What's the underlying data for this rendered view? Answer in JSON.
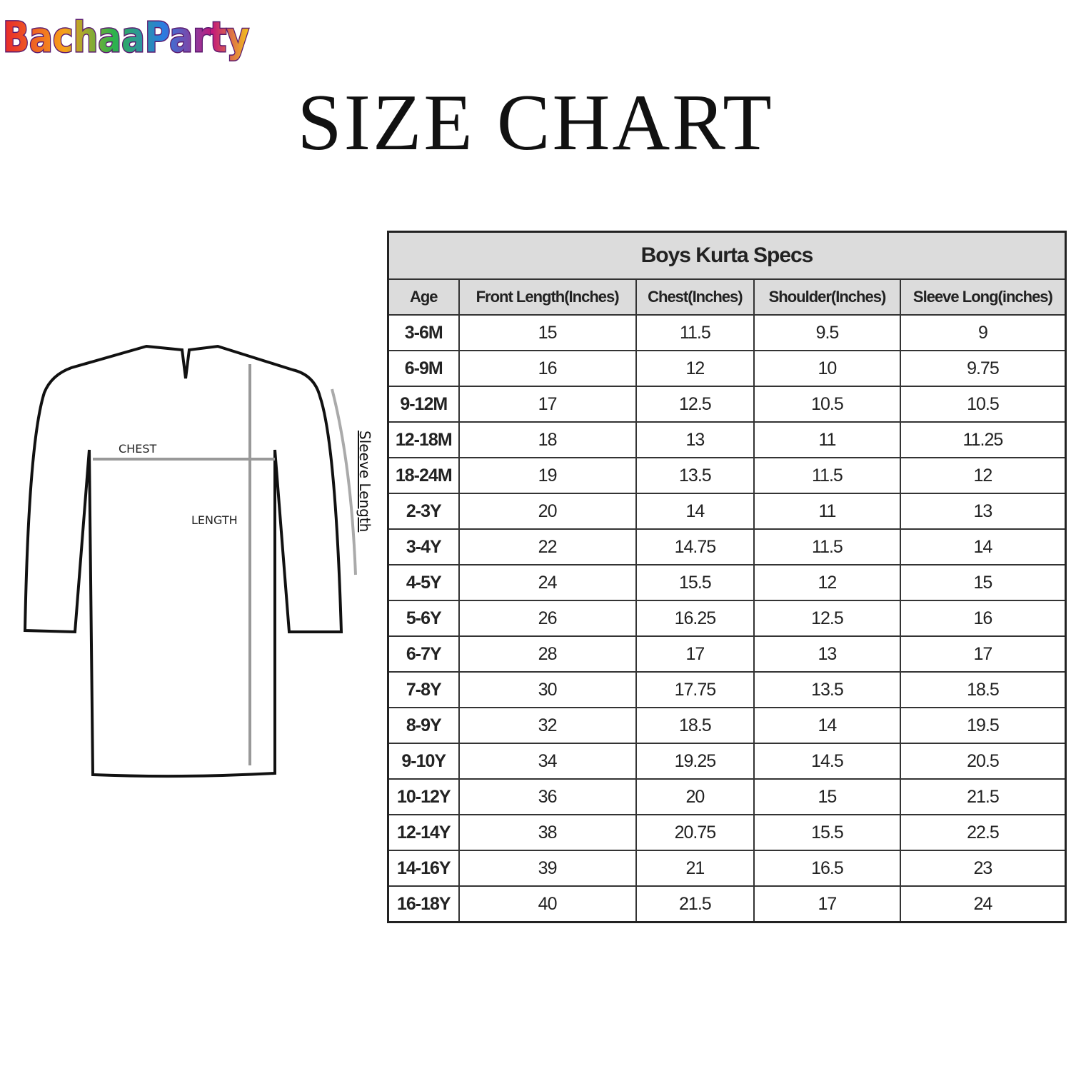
{
  "logo": "BachaaParty",
  "title": "SIZE CHART",
  "diagram": {
    "chest": "CHEST",
    "length": "LENGTH",
    "sleeve": "Sleeve Length"
  },
  "table": {
    "title": "Boys Kurta Specs",
    "header": [
      "Age",
      "Front Length(Inches)",
      "Chest(Inches)",
      "Shoulder(Inches)",
      "Sleeve Long(inches)"
    ],
    "rows": [
      [
        "3-6M",
        "15",
        "11.5",
        "9.5",
        "9"
      ],
      [
        "6-9M",
        "16",
        "12",
        "10",
        "9.75"
      ],
      [
        "9-12M",
        "17",
        "12.5",
        "10.5",
        "10.5"
      ],
      [
        "12-18M",
        "18",
        "13",
        "11",
        "11.25"
      ],
      [
        "18-24M",
        "19",
        "13.5",
        "11.5",
        "12"
      ],
      [
        "2-3Y",
        "20",
        "14",
        "11",
        "13"
      ],
      [
        "3-4Y",
        "22",
        "14.75",
        "11.5",
        "14"
      ],
      [
        "4-5Y",
        "24",
        "15.5",
        "12",
        "15"
      ],
      [
        "5-6Y",
        "26",
        "16.25",
        "12.5",
        "16"
      ],
      [
        "6-7Y",
        "28",
        "17",
        "13",
        "17"
      ],
      [
        "7-8Y",
        "30",
        "17.75",
        "13.5",
        "18.5"
      ],
      [
        "8-9Y",
        "32",
        "18.5",
        "14",
        "19.5"
      ],
      [
        "9-10Y",
        "34",
        "19.25",
        "14.5",
        "20.5"
      ],
      [
        "10-12Y",
        "36",
        "20",
        "15",
        "21.5"
      ],
      [
        "12-14Y",
        "38",
        "20.75",
        "15.5",
        "22.5"
      ],
      [
        "14-16Y",
        "39",
        "21",
        "16.5",
        "23"
      ],
      [
        "16-18Y",
        "40",
        "21.5",
        "17",
        "24"
      ]
    ]
  }
}
